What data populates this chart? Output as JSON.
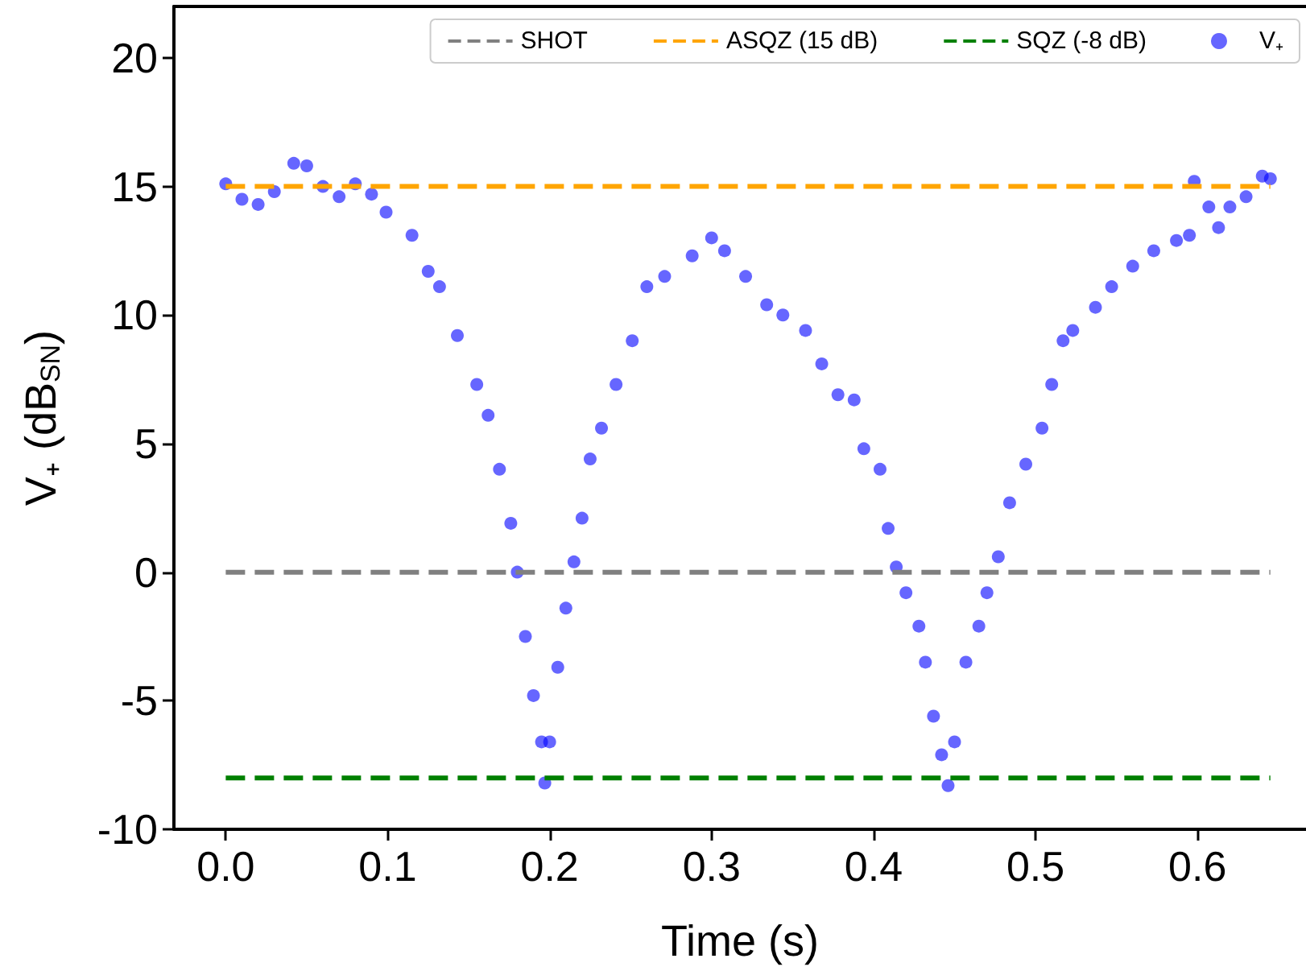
{
  "chart_data": {
    "type": "scatter",
    "xlabel": "Time (s)",
    "ylabel": "V₊ (dB$_{SN}$)",
    "xlim": [
      -0.032,
      0.667
    ],
    "ylim": [
      -10,
      22
    ],
    "xticks": [
      {
        "value": 0,
        "label": "0.0"
      },
      {
        "value": 0.1,
        "label": "0.1"
      },
      {
        "value": 0.2,
        "label": "0.2"
      },
      {
        "value": 0.3,
        "label": "0.3"
      },
      {
        "value": 0.4,
        "label": "0.4"
      },
      {
        "value": 0.5,
        "label": "0.5"
      },
      {
        "value": 0.6,
        "label": "0.6"
      }
    ],
    "yticks": [
      -10,
      -5,
      0,
      5,
      10,
      15,
      20
    ],
    "grid": false,
    "legend": "top right",
    "series": [
      {
        "name": "SHOT",
        "type": "line",
        "color": "#808080",
        "line_style": "dashed",
        "marker": "none",
        "x": [
          0,
          0.645
        ],
        "values": [
          0,
          0
        ]
      },
      {
        "name": "ASQZ (15 dB)",
        "type": "line",
        "color": "#ffa500",
        "line_style": "dashed",
        "marker": "none",
        "x": [
          0,
          0.645
        ],
        "values": [
          15,
          15
        ]
      },
      {
        "name": "SQZ (-8 dB)",
        "type": "line",
        "color": "#008000",
        "line_style": "dashed",
        "marker": "none",
        "x": [
          0,
          0.645
        ],
        "values": [
          -8,
          -8
        ]
      },
      {
        "name": "V₊",
        "color": "#0000ff",
        "marker": "circle",
        "x": [
          0,
          0.01,
          0.02,
          0.03,
          0.042,
          0.05,
          0.06,
          0.07,
          0.08,
          0.09,
          0.099,
          0.115,
          0.125,
          0.132,
          0.143,
          0.155,
          0.162,
          0.169,
          0.176,
          0.18,
          0.185,
          0.19,
          0.195,
          0.197,
          0.2,
          0.205,
          0.21,
          0.215,
          0.22,
          0.225,
          0.232,
          0.241,
          0.251,
          0.26,
          0.271,
          0.288,
          0.3,
          0.308,
          0.321,
          0.334,
          0.344,
          0.358,
          0.368,
          0.378,
          0.388,
          0.394,
          0.404,
          0.409,
          0.414,
          0.42,
          0.428,
          0.432,
          0.437,
          0.442,
          0.446,
          0.45,
          0.457,
          0.465,
          0.47,
          0.477,
          0.484,
          0.494,
          0.504,
          0.51,
          0.517,
          0.523,
          0.537,
          0.547,
          0.56,
          0.573,
          0.587,
          0.595,
          0.598,
          0.607,
          0.613,
          0.62,
          0.63,
          0.64,
          0.645
        ],
        "values": [
          15.1,
          14.5,
          14.3,
          14.8,
          15.9,
          15.8,
          15.0,
          14.6,
          15.1,
          14.7,
          14.0,
          13.1,
          11.7,
          11.1,
          9.2,
          7.3,
          6.1,
          4.0,
          1.9,
          0,
          -2.5,
          -4.8,
          -6.6,
          -8.2,
          -6.6,
          -3.7,
          -1.4,
          0.4,
          2.1,
          4.4,
          5.6,
          7.3,
          9.0,
          11.1,
          11.5,
          12.3,
          13.0,
          12.5,
          11.5,
          10.4,
          10.0,
          9.4,
          8.1,
          6.9,
          6.7,
          4.8,
          4.0,
          1.7,
          0.2,
          -0.8,
          -2.1,
          -3.5,
          -5.6,
          -7.1,
          -8.3,
          -6.6,
          -3.5,
          -2.1,
          -0.8,
          0.6,
          2.7,
          4.2,
          5.6,
          7.3,
          9.0,
          9.4,
          10.3,
          11.1,
          11.9,
          12.5,
          12.9,
          13.1,
          15.2,
          14.2,
          13.4,
          14.2,
          14.6,
          15.4,
          15.3
        ]
      }
    ]
  }
}
